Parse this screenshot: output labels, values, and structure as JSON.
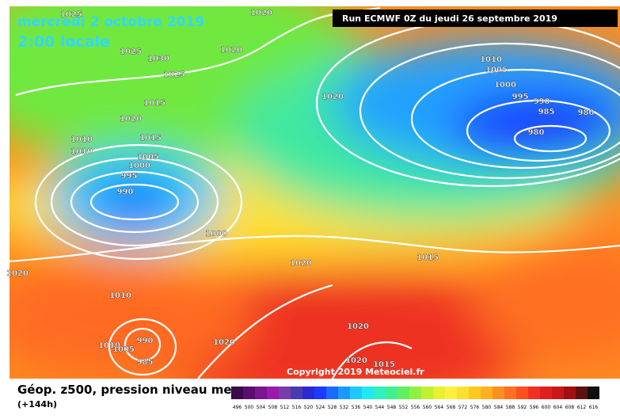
{
  "header": {
    "date": "mercredi 2 octobre 2019",
    "time": "2:00 locale",
    "run": "Run ECMWF 0Z du jeudi 26 septembre 2019"
  },
  "copyright": "Copyright 2019 Meteociel.fr",
  "footer": {
    "title": "Géop. z500, pression niveau mer",
    "lead": "(+144h)"
  },
  "isobar_labels": [
    "1025",
    "1020",
    "1025",
    "1030",
    "1020",
    "1025",
    "1015",
    "1020",
    "1015",
    "1010",
    "1010",
    "1005",
    "1000",
    "995",
    "990",
    "1000",
    "1020",
    "1010",
    "1005",
    "1000",
    "995",
    "990",
    "985",
    "980",
    "980",
    "1020",
    "1015",
    "1020",
    "1010",
    "1020",
    "1020",
    "1020",
    "1015",
    "1010",
    "1005",
    "990",
    "985"
  ],
  "scale": {
    "labels": [
      "496",
      "500",
      "504",
      "508",
      "512",
      "516",
      "520",
      "524",
      "528",
      "532",
      "536",
      "540",
      "544",
      "548",
      "552",
      "556",
      "560",
      "564",
      "568",
      "572",
      "576",
      "580",
      "584",
      "588",
      "592",
      "596",
      "600",
      "604",
      "608",
      "612",
      "616"
    ],
    "colors": [
      "#3a0a4a",
      "#5a0f6e",
      "#7a1490",
      "#9a1ab0",
      "#7a3ca8",
      "#4a3ab0",
      "#2a2ad0",
      "#1a3aff",
      "#1a6aff",
      "#1a9aff",
      "#20c8ff",
      "#20e8f0",
      "#30f0c0",
      "#40f090",
      "#60f060",
      "#90f040",
      "#c0f030",
      "#e8f030",
      "#fff040",
      "#ffe030",
      "#ffc820",
      "#ffb020",
      "#ff9020",
      "#ff7020",
      "#ff5020",
      "#f03020",
      "#e02020",
      "#c81818",
      "#a01010",
      "#601010",
      "#101010"
    ]
  }
}
